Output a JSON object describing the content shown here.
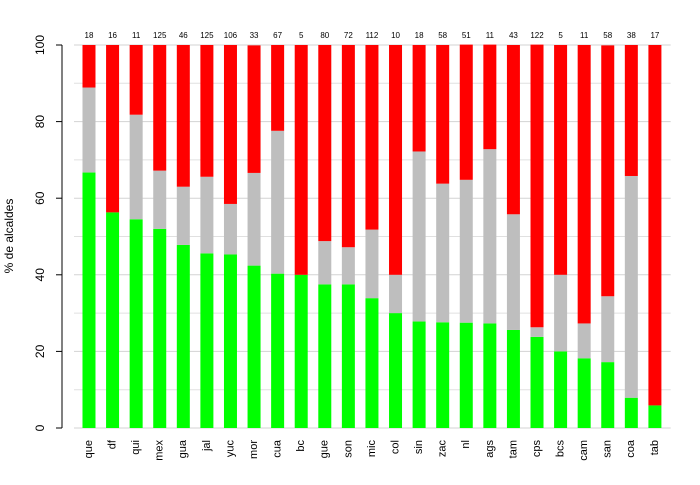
{
  "chart_data": {
    "type": "stacked_bar",
    "y_label": "% de alcaldes",
    "categories": [
      "que",
      "df",
      "qui",
      "mex",
      "gua",
      "jal",
      "yuc",
      "mor",
      "cua",
      "bc",
      "gue",
      "son",
      "mic",
      "col",
      "sin",
      "zac",
      "nl",
      "ags",
      "tam",
      "cps",
      "bcs",
      "cam",
      "san",
      "coa",
      "tab"
    ],
    "series": [
      {
        "color": "#00ff00",
        "values": [
          66.7,
          56.3,
          54.5,
          52.0,
          47.8,
          45.6,
          45.3,
          42.4,
          40.3,
          40.0,
          37.5,
          37.5,
          33.9,
          30.0,
          27.8,
          27.6,
          27.5,
          27.3,
          25.6,
          23.8,
          20.0,
          18.2,
          17.2,
          7.9,
          5.9
        ]
      },
      {
        "color": "#bebebe",
        "values": [
          22.2,
          0,
          27.3,
          15.2,
          15.2,
          20.0,
          13.2,
          24.2,
          37.3,
          0,
          11.3,
          9.7,
          17.9,
          10.0,
          44.4,
          36.2,
          37.3,
          45.5,
          30.2,
          2.5,
          20.0,
          9.1,
          17.2,
          57.9,
          0
        ]
      },
      {
        "color": "#ff0000",
        "values": [
          11.1,
          43.7,
          18.2,
          32.8,
          37.0,
          34.4,
          41.5,
          33.3,
          22.4,
          60.0,
          51.2,
          52.8,
          48.2,
          60.0,
          27.8,
          36.2,
          35.3,
          27.3,
          44.2,
          73.8,
          60.0,
          72.7,
          65.5,
          34.2,
          94.1
        ]
      }
    ],
    "top_labels": [
      18,
      16,
      11,
      125,
      46,
      125,
      106,
      33,
      67,
      5,
      80,
      72,
      112,
      10,
      18,
      58,
      51,
      11,
      43,
      122,
      5,
      11,
      58,
      38,
      17
    ],
    "ylim": [
      0,
      100
    ],
    "yticks": [
      0,
      20,
      40,
      60,
      80,
      100
    ],
    "minor_yticks": [
      10,
      30,
      50,
      70,
      90
    ],
    "grid": true
  }
}
